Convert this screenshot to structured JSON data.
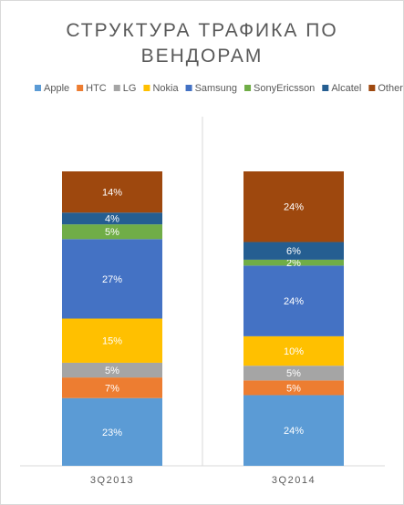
{
  "chart_data": {
    "type": "stacked-bar",
    "title": "СТРУКТУРА ТРАФИКА ПО ВЕНДОРАМ",
    "categories": [
      "3Q2013",
      "3Q2014"
    ],
    "series": [
      {
        "name": "Apple",
        "color": "#5b9bd5",
        "values": [
          23,
          24
        ],
        "value_labels": [
          "23%",
          "24%"
        ]
      },
      {
        "name": "HTC",
        "color": "#ed7d31",
        "values": [
          7,
          5
        ],
        "value_labels": [
          "7%",
          "5%"
        ]
      },
      {
        "name": "LG",
        "color": "#a5a5a5",
        "values": [
          5,
          5
        ],
        "value_labels": [
          "5%",
          "5%"
        ]
      },
      {
        "name": "Nokia",
        "color": "#ffc000",
        "values": [
          15,
          10
        ],
        "value_labels": [
          "15%",
          "10%"
        ]
      },
      {
        "name": "Samsung",
        "color": "#4472c4",
        "values": [
          27,
          24
        ],
        "value_labels": [
          "27%",
          "24%"
        ]
      },
      {
        "name": "SonyEricsson",
        "color": "#70ad47",
        "values": [
          5,
          2
        ],
        "value_labels": [
          "5%",
          "2%"
        ]
      },
      {
        "name": "Alcatel",
        "color": "#255e91",
        "values": [
          4,
          6
        ],
        "value_labels": [
          "4%",
          "6%"
        ]
      },
      {
        "name": "Other",
        "color": "#9e480e",
        "values": [
          14,
          24
        ],
        "value_labels": [
          "14%",
          "24%"
        ]
      }
    ]
  }
}
